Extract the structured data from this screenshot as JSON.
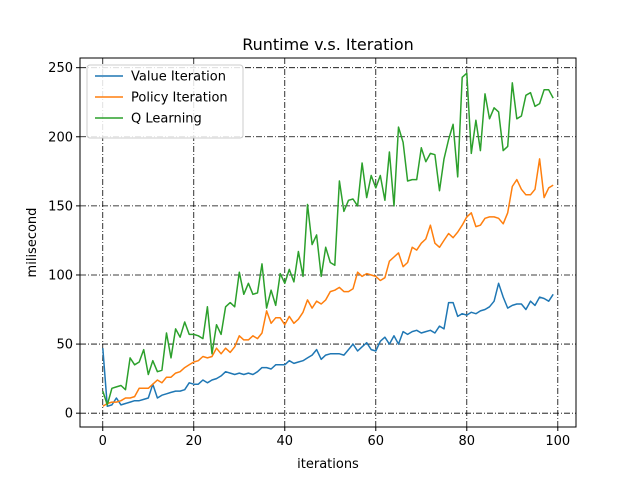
{
  "chart_data": {
    "type": "line",
    "title": "Runtime v.s. Iteration",
    "xlabel": "iterations",
    "ylabel": "milisecond",
    "xlim": [
      -5,
      104
    ],
    "ylim": [
      -10,
      257
    ],
    "xticks": [
      0,
      20,
      40,
      60,
      80,
      100
    ],
    "yticks": [
      0,
      50,
      100,
      150,
      200,
      250
    ],
    "grid": true,
    "legend_position": "top-left",
    "series": [
      {
        "name": "Value Iteration",
        "color": "#1f77b4",
        "values": [
          47,
          5,
          6,
          11,
          6,
          7,
          8,
          9,
          9,
          10,
          11,
          21,
          11,
          13,
          14,
          15,
          16,
          16,
          17,
          22,
          21,
          21,
          24,
          22,
          24,
          25,
          27,
          30,
          29,
          28,
          29,
          28,
          29,
          28,
          30,
          33,
          33,
          32,
          35,
          35,
          35,
          38,
          36,
          37,
          38,
          40,
          42,
          46,
          39,
          42,
          43,
          43,
          43,
          42,
          46,
          50,
          45,
          48,
          51,
          46,
          45,
          52,
          55,
          50,
          56,
          50,
          59,
          57,
          59,
          60,
          58,
          59,
          60,
          58,
          63,
          61,
          80,
          80,
          70,
          72,
          71,
          73,
          72,
          74,
          75,
          77,
          81,
          94,
          84,
          76,
          78,
          79,
          79,
          75,
          81,
          78,
          84,
          83,
          81,
          86
        ]
      },
      {
        "name": "Policy Iteration",
        "color": "#ff7f0e",
        "values": [
          5,
          7,
          8,
          8,
          9,
          11,
          11,
          12,
          18,
          18,
          18,
          21,
          24,
          22,
          26,
          26,
          29,
          30,
          33,
          35,
          37,
          38,
          41,
          40,
          41,
          47,
          43,
          47,
          44,
          48,
          56,
          53,
          53,
          56,
          54,
          58,
          74,
          65,
          69,
          69,
          64,
          70,
          65,
          68,
          73,
          82,
          76,
          81,
          79,
          82,
          88,
          89,
          91,
          88,
          88,
          90,
          102,
          99,
          101,
          100,
          99,
          96,
          98,
          110,
          113,
          116,
          106,
          109,
          120,
          118,
          123,
          126,
          136,
          123,
          120,
          125,
          130,
          127,
          131,
          136,
          142,
          145,
          135,
          136,
          141,
          142,
          142,
          141,
          137,
          145,
          164,
          169,
          162,
          158,
          158,
          162,
          184,
          156,
          163,
          165
        ]
      },
      {
        "name": "Q Learning",
        "color": "#2ca02c",
        "values": [
          16,
          6,
          18,
          19,
          20,
          17,
          40,
          35,
          37,
          46,
          28,
          38,
          30,
          31,
          58,
          40,
          61,
          55,
          66,
          57,
          57,
          56,
          54,
          77,
          43,
          64,
          57,
          77,
          80,
          77,
          102,
          86,
          94,
          86,
          87,
          108,
          76,
          89,
          78,
          101,
          94,
          104,
          95,
          117,
          99,
          151,
          122,
          129,
          99,
          120,
          109,
          107,
          168,
          146,
          154,
          155,
          150,
          181,
          156,
          172,
          163,
          172,
          154,
          189,
          150,
          207,
          196,
          168,
          169,
          169,
          192,
          182,
          188,
          187,
          161,
          184,
          198,
          209,
          171,
          243,
          246,
          188,
          212,
          190,
          231,
          213,
          221,
          218,
          190,
          193,
          239,
          213,
          215,
          230,
          232,
          222,
          224,
          234,
          234,
          228
        ]
      }
    ]
  }
}
